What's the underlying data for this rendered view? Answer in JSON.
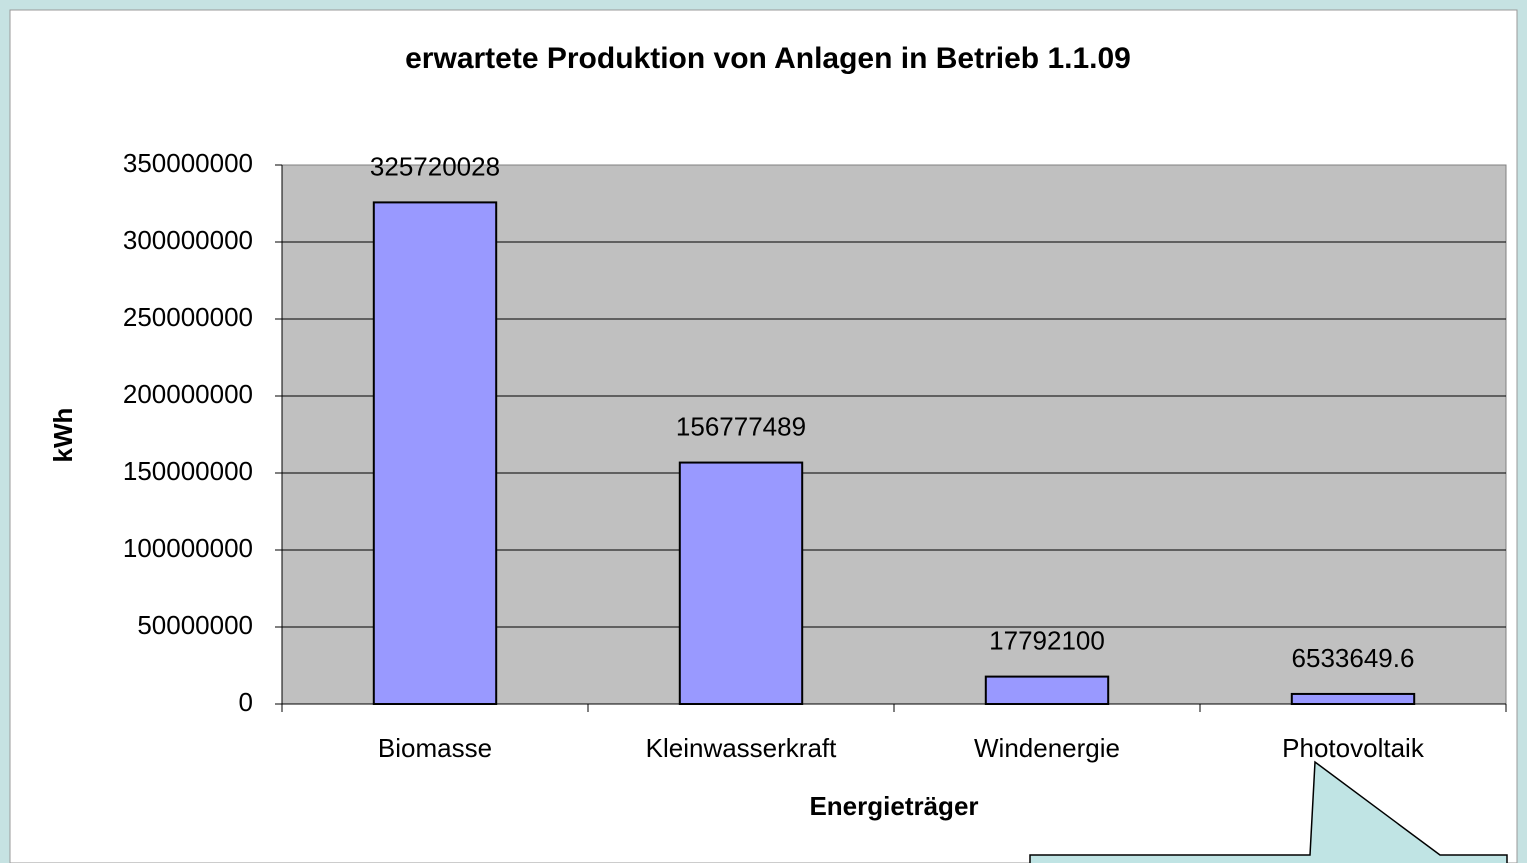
{
  "chart_data": {
    "type": "bar",
    "title": "erwartete Produktion von Anlagen in Betrieb 1.1.09",
    "x_label": "Energieträger",
    "y_label": "kWh",
    "categories": [
      "Biomasse",
      "Kleinwasserkraft",
      "Windenergie",
      "Photovoltaik"
    ],
    "values": [
      325720028,
      156777489,
      17792100,
      6533649.6
    ],
    "color": "#9999ff",
    "ylim": [
      0,
      350000000
    ],
    "yticks": [
      0,
      50000000,
      100000000,
      150000000,
      200000000,
      250000000,
      300000000,
      350000000
    ],
    "grid": true
  }
}
